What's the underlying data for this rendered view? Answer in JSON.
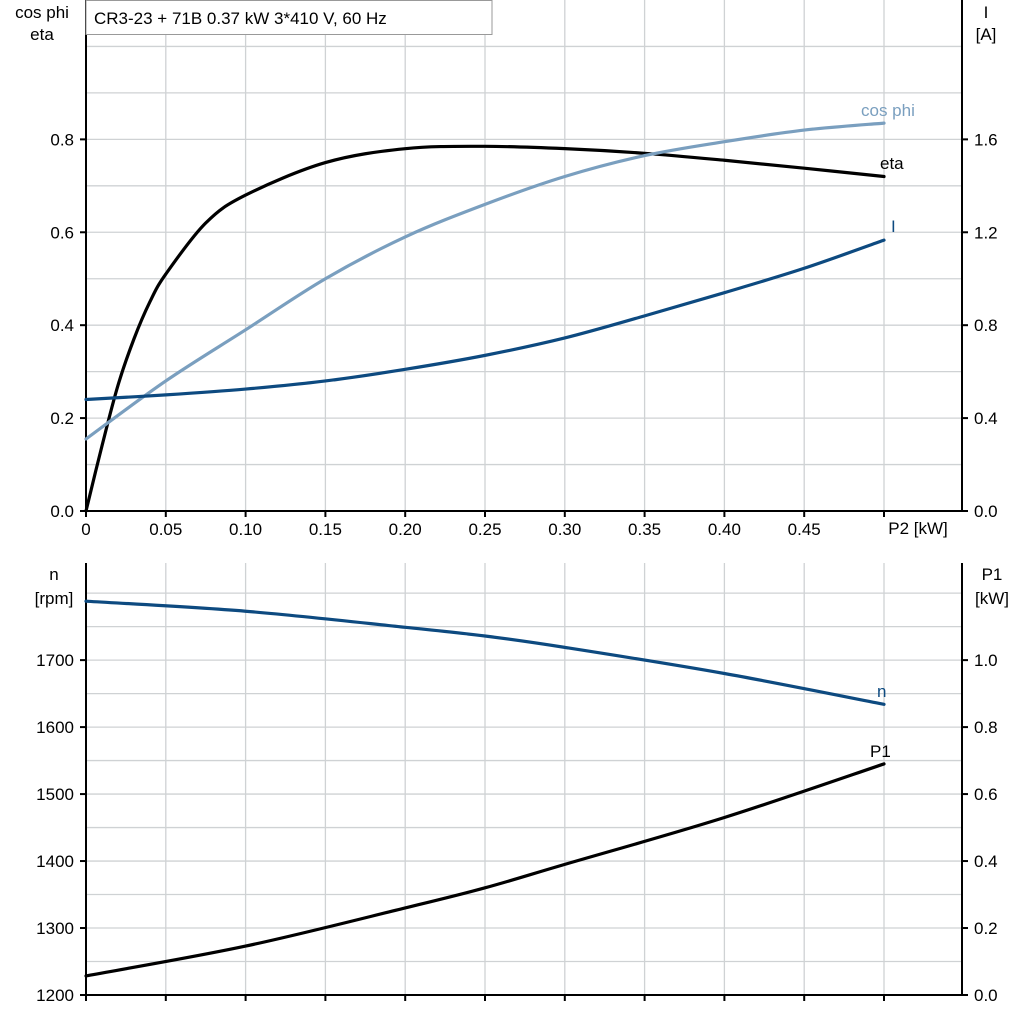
{
  "title": "CR3-23 + 71B   0.37 kW   3*410 V, 60 Hz",
  "colors": {
    "eta": "#000000",
    "cos_phi": "#7a9fbf",
    "I": "#0d4a80",
    "n": "#0d4a80",
    "P1": "#000000",
    "grid": "#cfd2d4"
  },
  "chart_data": [
    {
      "type": "line",
      "xlabel": "P2 [kW]",
      "xlim": [
        0,
        0.5
      ],
      "x_ticks": [
        "0",
        "0.05",
        "0.10",
        "0.15",
        "0.20",
        "0.25",
        "0.30",
        "0.35",
        "0.40",
        "0.45"
      ],
      "ylabel_left": [
        "cos phi",
        "eta"
      ],
      "ylim_left": [
        0,
        1.1
      ],
      "y_ticks_left": [
        "0.0",
        "0.2",
        "0.4",
        "0.6",
        "0.8"
      ],
      "ylabel_right": [
        "I",
        "[A]"
      ],
      "ylim_right": [
        0,
        2.2
      ],
      "y_ticks_right": [
        "0.0",
        "0.4",
        "0.8",
        "1.2",
        "1.6"
      ],
      "grid": true,
      "series": [
        {
          "name": "eta",
          "axis": "left",
          "x": [
            0,
            0.01,
            0.02,
            0.03,
            0.04,
            0.05,
            0.075,
            0.1,
            0.15,
            0.2,
            0.25,
            0.3,
            0.35,
            0.4,
            0.45,
            0.5
          ],
          "y": [
            0,
            0.14,
            0.27,
            0.37,
            0.45,
            0.51,
            0.62,
            0.68,
            0.75,
            0.78,
            0.785,
            0.78,
            0.77,
            0.755,
            0.738,
            0.72
          ]
        },
        {
          "name": "cos phi",
          "axis": "left",
          "x": [
            0,
            0.05,
            0.1,
            0.15,
            0.2,
            0.25,
            0.3,
            0.35,
            0.4,
            0.45,
            0.5
          ],
          "y": [
            0.155,
            0.28,
            0.39,
            0.5,
            0.59,
            0.66,
            0.72,
            0.765,
            0.795,
            0.82,
            0.835
          ]
        },
        {
          "name": "I",
          "axis": "right",
          "x": [
            0,
            0.05,
            0.1,
            0.15,
            0.2,
            0.25,
            0.3,
            0.35,
            0.4,
            0.45,
            0.5
          ],
          "y": [
            0.48,
            0.5,
            0.525,
            0.56,
            0.61,
            0.67,
            0.745,
            0.84,
            0.94,
            1.045,
            1.166
          ]
        }
      ]
    },
    {
      "type": "line",
      "xlim": [
        0,
        0.5
      ],
      "ylabel_left": [
        "n",
        "[rpm]"
      ],
      "ylim_left": [
        1200,
        1845
      ],
      "y_ticks_left": [
        "1200",
        "1300",
        "1400",
        "1500",
        "1600",
        "1700"
      ],
      "ylabel_right": [
        "P1",
        "[kW]"
      ],
      "ylim_right": [
        0,
        1.29
      ],
      "y_ticks_right": [
        "0.0",
        "0.2",
        "0.4",
        "0.6",
        "0.8",
        "1.0"
      ],
      "grid": true,
      "series": [
        {
          "name": "n",
          "axis": "left",
          "x": [
            0,
            0.1,
            0.2,
            0.25,
            0.3,
            0.4,
            0.5
          ],
          "y": [
            1788,
            1773,
            1749,
            1736,
            1719,
            1680,
            1634
          ]
        },
        {
          "name": "P1",
          "axis": "right",
          "x": [
            0,
            0.1,
            0.2,
            0.25,
            0.3,
            0.4,
            0.5
          ],
          "y": [
            0.057,
            0.146,
            0.26,
            0.32,
            0.39,
            0.53,
            0.69
          ]
        }
      ]
    }
  ]
}
